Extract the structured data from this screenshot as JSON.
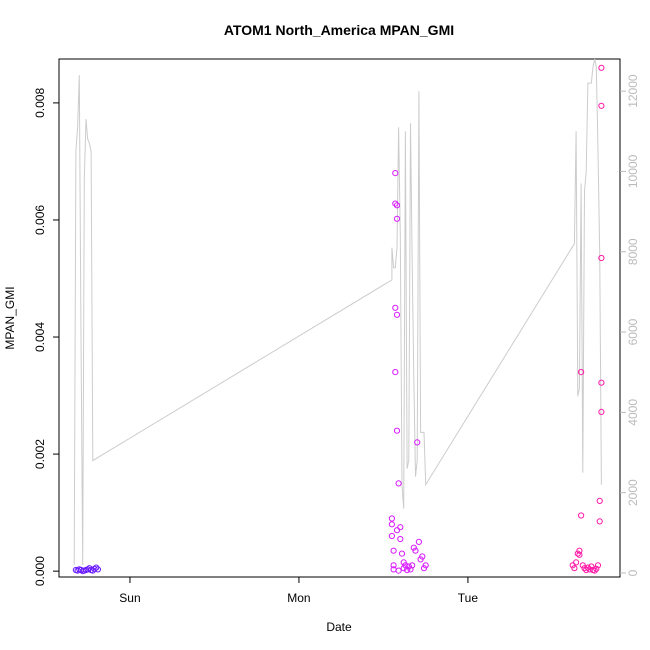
{
  "chart_data": {
    "type": "scatter",
    "title": "ATOM1 North_America MPAN_GMI",
    "xlabel": "Date",
    "ylabel": "MPAN_GMI",
    "x_ticks": [
      {
        "label": "Sun",
        "day": 1.0
      },
      {
        "label": "Mon",
        "day": 2.0
      },
      {
        "label": "Tue",
        "day": 3.0
      }
    ],
    "xlim_days": [
      0.58,
      3.9
    ],
    "ylim_left": [
      -0.0001,
      0.00875
    ],
    "ylim_right": [
      -100,
      12800
    ],
    "y_ticks_left": [
      "0.000",
      "0.002",
      "0.004",
      "0.006",
      "0.008"
    ],
    "y_tick_values_left": [
      0.0,
      0.002,
      0.004,
      0.006,
      0.008
    ],
    "y_ticks_right": [
      "0",
      "2000",
      "4000",
      "6000",
      "8000",
      "10000",
      "12000"
    ],
    "y_tick_values_right": [
      0,
      2000,
      4000,
      6000,
      8000,
      10000,
      12000
    ],
    "grid": false,
    "legend": "none",
    "colors": {
      "scatter_early": "#6a1aff",
      "scatter_mid": "#d81aff",
      "scatter_late": "#ff1aa8",
      "line": "#cccccc",
      "right_axis": "#bbbbbb"
    },
    "series": [
      {
        "type": "scatter",
        "axis": "left",
        "points": [
          [
            0.68,
            2e-05
          ],
          [
            0.69,
            1e-05
          ],
          [
            0.7,
            3e-05
          ],
          [
            0.71,
            2e-05
          ],
          [
            0.72,
            0.0
          ],
          [
            0.73,
            1e-05
          ],
          [
            0.74,
            2e-05
          ],
          [
            0.75,
            3e-05
          ],
          [
            0.76,
            5e-05
          ],
          [
            0.77,
            2e-05
          ],
          [
            0.78,
            1e-05
          ],
          [
            0.79,
            4e-05
          ],
          [
            0.8,
            6e-05
          ],
          [
            0.81,
            3e-05
          ],
          [
            2.55,
            0.0009
          ],
          [
            2.55,
            0.0008
          ],
          [
            2.55,
            0.0006
          ],
          [
            2.56,
            0.00035
          ],
          [
            2.56,
            0.0001
          ],
          [
            2.57,
            0.0068
          ],
          [
            2.57,
            0.00628
          ],
          [
            2.58,
            0.00625
          ],
          [
            2.58,
            0.00602
          ],
          [
            2.57,
            0.0045
          ],
          [
            2.58,
            0.00438
          ],
          [
            2.57,
            0.0034
          ],
          [
            2.58,
            0.0024
          ],
          [
            2.59,
            0.0015
          ],
          [
            2.58,
            0.0007
          ],
          [
            2.6,
            0.00075
          ],
          [
            2.6,
            0.00055
          ],
          [
            2.61,
            0.0003
          ],
          [
            2.62,
            0.00015
          ],
          [
            2.62,
            5e-05
          ],
          [
            2.63,
            0.0001
          ],
          [
            2.64,
            2e-05
          ],
          [
            2.65,
            8e-05
          ],
          [
            2.66,
            3e-05
          ],
          [
            2.67,
            0.0001
          ],
          [
            2.68,
            0.0004
          ],
          [
            2.69,
            0.00035
          ],
          [
            2.7,
            0.0022
          ],
          [
            2.71,
            0.0005
          ],
          [
            2.72,
            0.0002
          ],
          [
            2.73,
            0.00025
          ],
          [
            2.74,
            5e-05
          ],
          [
            2.75,
            0.0001
          ],
          [
            2.56,
            3e-05
          ],
          [
            2.59,
            1e-05
          ],
          [
            3.62,
            0.0001
          ],
          [
            3.63,
            5e-05
          ],
          [
            3.64,
            0.00015
          ],
          [
            3.65,
            0.0003
          ],
          [
            3.66,
            0.00035
          ],
          [
            3.66,
            0.00028
          ],
          [
            3.67,
            0.00095
          ],
          [
            3.67,
            0.0034
          ],
          [
            3.68,
            0.0001
          ],
          [
            3.69,
            5e-05
          ],
          [
            3.7,
            2e-05
          ],
          [
            3.71,
            6e-05
          ],
          [
            3.72,
            3e-05
          ],
          [
            3.73,
            8e-05
          ],
          [
            3.74,
            2e-05
          ],
          [
            3.75,
            1e-05
          ],
          [
            3.76,
            4e-05
          ],
          [
            3.77,
            0.0001
          ],
          [
            3.78,
            0.00085
          ],
          [
            3.78,
            0.0012
          ],
          [
            3.79,
            0.00272
          ],
          [
            3.79,
            0.00322
          ],
          [
            3.79,
            0.00535
          ],
          [
            3.79,
            0.00795
          ],
          [
            3.79,
            0.0086
          ]
        ]
      },
      {
        "type": "line",
        "axis": "right",
        "points": [
          [
            0.67,
            200
          ],
          [
            0.68,
            10500
          ],
          [
            0.69,
            11100
          ],
          [
            0.7,
            12400
          ],
          [
            0.71,
            5900
          ],
          [
            0.72,
            200
          ],
          [
            0.73,
            9800
          ],
          [
            0.74,
            11300
          ],
          [
            0.75,
            10800
          ],
          [
            0.76,
            10700
          ],
          [
            0.77,
            10500
          ],
          [
            0.78,
            2800
          ],
          [
            2.55,
            7300
          ],
          [
            2.55,
            8100
          ],
          [
            2.56,
            7600
          ],
          [
            2.57,
            7600
          ],
          [
            2.58,
            8100
          ],
          [
            2.59,
            11100
          ],
          [
            2.6,
            8400
          ],
          [
            2.61,
            2200
          ],
          [
            2.62,
            1600
          ],
          [
            2.63,
            11000
          ],
          [
            2.64,
            2600
          ],
          [
            2.65,
            2800
          ],
          [
            2.66,
            11200
          ],
          [
            2.67,
            7700
          ],
          [
            2.68,
            4900
          ],
          [
            2.69,
            2400
          ],
          [
            2.7,
            2800
          ],
          [
            2.71,
            12000
          ],
          [
            2.72,
            3500
          ],
          [
            2.73,
            3500
          ],
          [
            2.74,
            3500
          ],
          [
            2.75,
            2200
          ],
          [
            3.63,
            8200
          ],
          [
            3.64,
            11000
          ],
          [
            3.65,
            4400
          ],
          [
            3.66,
            4600
          ],
          [
            3.67,
            9700
          ],
          [
            3.68,
            2500
          ],
          [
            3.69,
            9500
          ],
          [
            3.7,
            10000
          ],
          [
            3.71,
            12200
          ],
          [
            3.72,
            12200
          ],
          [
            3.73,
            12200
          ],
          [
            3.74,
            12600
          ],
          [
            3.75,
            12800
          ],
          [
            3.76,
            12600
          ],
          [
            3.77,
            10500
          ],
          [
            3.78,
            8000
          ],
          [
            3.79,
            2200
          ]
        ]
      }
    ]
  }
}
